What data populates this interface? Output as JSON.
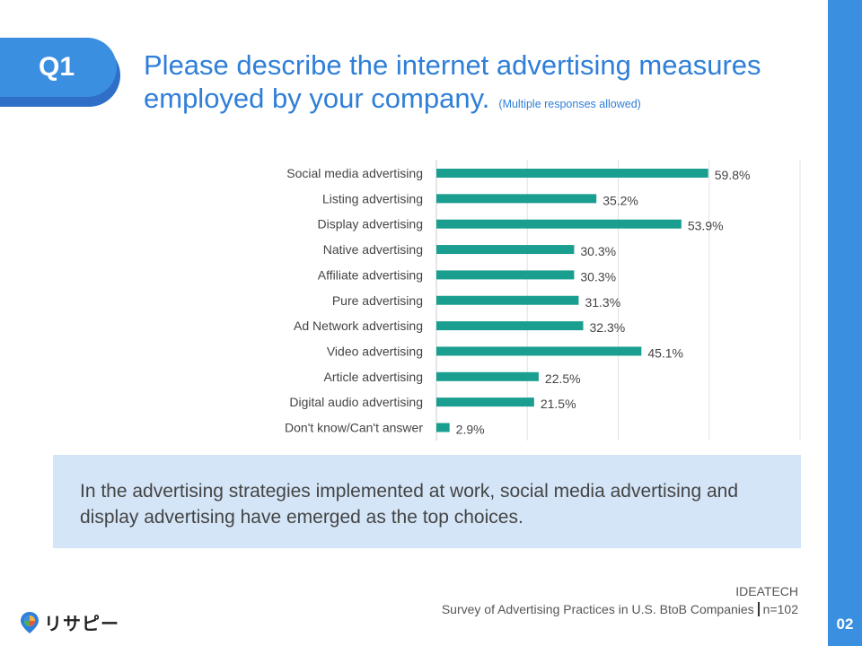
{
  "badge": "Q1",
  "title": {
    "line1": "Please describe the internet advertising measures",
    "line2": "employed by your company.",
    "note": "(Multiple responses allowed)"
  },
  "chart_data": {
    "type": "bar",
    "orientation": "horizontal",
    "categories": [
      "Social media advertising",
      "Listing advertising",
      "Display advertising",
      "Native advertising",
      "Affiliate advertising",
      "Pure advertising",
      "Ad Network advertising",
      "Video advertising",
      "Article advertising",
      "Digital audio advertising",
      "Don't know/Can't answer"
    ],
    "values": [
      59.8,
      35.2,
      53.9,
      30.3,
      30.3,
      31.3,
      32.3,
      45.1,
      22.5,
      21.5,
      2.9
    ],
    "value_labels": [
      "59.8%",
      "35.2%",
      "53.9%",
      "30.3%",
      "30.3%",
      "31.3%",
      "32.3%",
      "45.1%",
      "22.5%",
      "21.5%",
      "2.9%"
    ],
    "xlim": [
      0,
      80
    ],
    "grid": true,
    "bar_color": "#1a9e8f"
  },
  "summary": "In the advertising strategies implemented at work, social media advertising and display advertising have emerged as the top choices.",
  "source": {
    "company": "IDEATECH",
    "survey": "Survey of Advertising Practices in U.S. BtoB Companies",
    "sample": "n=102"
  },
  "logo_text": "リサピー",
  "page_number": "02",
  "colors": {
    "accent": "#3b8fe0",
    "title": "#2f7fd8",
    "bar": "#1a9e8f",
    "summary_bg": "#d4e5f7"
  }
}
